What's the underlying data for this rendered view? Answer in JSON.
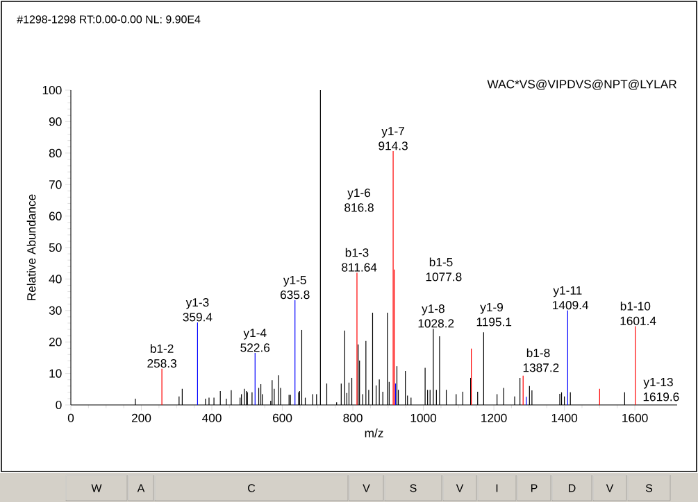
{
  "chart_data": {
    "type": "bar",
    "title": "#1298-1298 RT:0.00-0.00 NL: 9.90E4",
    "xlabel": "m/z",
    "ylabel": "Relative Abundance",
    "xlim": [
      0,
      1720
    ],
    "ylim": [
      0,
      100
    ],
    "xticks": [
      0,
      200,
      400,
      600,
      800,
      1000,
      1200,
      1400,
      1600
    ],
    "yticks": [
      0,
      10,
      20,
      30,
      40,
      50,
      60,
      70,
      80,
      90,
      100
    ],
    "series": [
      {
        "color": "#000000",
        "x": [
          183,
          307,
          316,
          382,
          392,
          406,
          424,
          441,
          455,
          480,
          484,
          492,
          498,
          501,
          514,
          533,
          539,
          543,
          567,
          571,
          577,
          589,
          595,
          619,
          623,
          646,
          649,
          655,
          665,
          686,
          697,
          708,
          726,
          754,
          767,
          777,
          783,
          789,
          797,
          815,
          819,
          828,
          837,
          845,
          856,
          866,
          875,
          885,
          898,
          903,
          925,
          929,
          949,
          955,
          965,
          1005,
          1012,
          1019,
          1028.2,
          1037,
          1046,
          1065,
          1093,
          1112,
          1134,
          1154,
          1171,
          1209,
          1228,
          1259,
          1274,
          1301,
          1308,
          1387,
          1392,
          1400,
          1417,
          1571
        ],
        "values": [
          2.0,
          2.7,
          5.1,
          2.0,
          2.3,
          2.3,
          4.4,
          2.0,
          4.7,
          2.3,
          3.4,
          5.1,
          4.4,
          4.0,
          4.0,
          5.4,
          6.6,
          3.4,
          1.3,
          7.9,
          5.1,
          9.4,
          5.4,
          3.2,
          3.2,
          4.0,
          4.4,
          23.8,
          2.3,
          3.4,
          3.4,
          100,
          6.8,
          0.8,
          6.8,
          23.6,
          3.8,
          7.1,
          8.6,
          19.2,
          14.1,
          3.4,
          20.3,
          4.8,
          29.3,
          6.2,
          8.1,
          4.2,
          29.3,
          7.3,
          12.3,
          4.8,
          10.8,
          3.0,
          2.3,
          11.8,
          4.8,
          4.8,
          24.2,
          4.8,
          21.8,
          4.8,
          3.4,
          4.2,
          8.6,
          4.2,
          23.1,
          3.4,
          5.4,
          2.7,
          8.6,
          6.0,
          4.6,
          3.5,
          4.0,
          2.7,
          4.0,
          4.0
        ]
      },
      {
        "color": "#0000ff",
        "x": [
          359.4,
          522.6,
          635.8,
          921,
          1292,
          1409.4
        ],
        "values": [
          26.2,
          16.5,
          33.3,
          6.8,
          2.6,
          30
        ]
      },
      {
        "color": "#ff0000",
        "x": [
          258.3,
          811.64,
          914.3,
          917.5,
          1136,
          1283,
          1500,
          1601.4
        ],
        "values": [
          11.5,
          42,
          80.6,
          43,
          17.9,
          9.3,
          5.1,
          25
        ]
      }
    ],
    "annotations": [
      {
        "text": "b1-2 258.3",
        "x": 258.3,
        "y": 11.5
      },
      {
        "text": "y1-3 359.4",
        "x": 359.4,
        "y": 26.2
      },
      {
        "text": "y1-4 522.6",
        "x": 522.6,
        "y": 16.5
      },
      {
        "text": "y1-5 635.8",
        "x": 635.8,
        "y": 33.3
      },
      {
        "text": "b1-3 811.64",
        "x": 811.64,
        "y": 42
      },
      {
        "text": "y1-7 914.3",
        "x": 914.3,
        "y": 80.6
      },
      {
        "text": "y1-8 1028.2",
        "x": 1028.2,
        "y": 24.2
      },
      {
        "text": "y1-11 1409.4",
        "x": 1409.4,
        "y": 30
      },
      {
        "text": "b1-10 1601.4",
        "x": 1601.4,
        "y": 25
      },
      "WAC*VS@VIPDVS@NPT@LYLAR",
      "y1-6 816.8",
      "b1-5 1077.8",
      "y1-9 1195.1",
      "b1-8 1387.2",
      "y1-13 1619.6",
      "W",
      "A",
      "C",
      "V",
      "S",
      "V",
      "I",
      "P",
      "D",
      "V",
      "S"
    ]
  }
}
